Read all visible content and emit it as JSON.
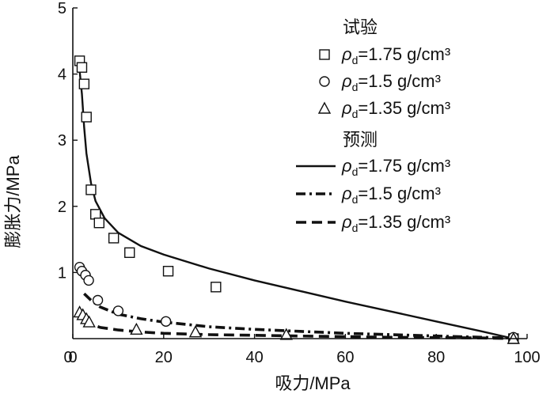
{
  "chart_data": {
    "type": "scatter",
    "xlabel": "吸力/MPa",
    "ylabel": "膨胀力/MPa",
    "xlim": [
      0,
      100
    ],
    "ylim": [
      0,
      5
    ],
    "xticks": [
      "0",
      "20",
      "40",
      "60",
      "80",
      "100"
    ],
    "yticks": [
      "1",
      "2",
      "3",
      "4",
      "5"
    ],
    "grid": false,
    "legend_position": "top-right",
    "legend_title_test": "试验",
    "legend_title_pred": "预测",
    "rho_symbol": "ρ",
    "rho_subscript": "d",
    "series": [
      {
        "name": "=1.75 g/cm³",
        "kind": "test",
        "marker": "square",
        "points": [
          [
            1.5,
            4.2
          ],
          [
            2.0,
            4.1
          ],
          [
            2.5,
            3.85
          ],
          [
            3.0,
            3.35
          ],
          [
            4.0,
            2.25
          ],
          [
            5.0,
            1.88
          ],
          [
            5.8,
            1.75
          ],
          [
            9.0,
            1.52
          ],
          [
            12.5,
            1.3
          ],
          [
            21.0,
            1.02
          ],
          [
            31.5,
            0.78
          ],
          [
            97.0,
            0.0
          ]
        ]
      },
      {
        "name": "=1.5 g/cm³",
        "kind": "test",
        "marker": "circle",
        "points": [
          [
            1.5,
            1.08
          ],
          [
            2.0,
            1.02
          ],
          [
            2.8,
            0.96
          ],
          [
            3.5,
            0.88
          ],
          [
            5.5,
            0.58
          ],
          [
            10.0,
            0.42
          ],
          [
            20.5,
            0.26
          ],
          [
            97.0,
            0.02
          ]
        ]
      },
      {
        "name": "=1.35 g/cm³",
        "kind": "test",
        "marker": "triangle",
        "points": [
          [
            1.5,
            0.4
          ],
          [
            2.2,
            0.36
          ],
          [
            3.0,
            0.3
          ],
          [
            3.6,
            0.25
          ],
          [
            14.0,
            0.14
          ],
          [
            27.0,
            0.1
          ],
          [
            47.0,
            0.06
          ],
          [
            97.0,
            0.0
          ]
        ]
      },
      {
        "name": "=1.75 g/cm³",
        "kind": "prediction",
        "line": "solid",
        "points": [
          [
            1.5,
            4.05
          ],
          [
            2.0,
            3.7
          ],
          [
            2.5,
            3.2
          ],
          [
            3.0,
            2.8
          ],
          [
            4.0,
            2.35
          ],
          [
            5.0,
            2.08
          ],
          [
            7.0,
            1.82
          ],
          [
            10.0,
            1.6
          ],
          [
            15.0,
            1.4
          ],
          [
            20.0,
            1.27
          ],
          [
            30.0,
            1.06
          ],
          [
            40.0,
            0.88
          ],
          [
            50.0,
            0.72
          ],
          [
            60.0,
            0.56
          ],
          [
            70.0,
            0.41
          ],
          [
            80.0,
            0.26
          ],
          [
            90.0,
            0.11
          ],
          [
            97.0,
            0.0
          ]
        ]
      },
      {
        "name": "=1.5 g/cm³",
        "kind": "prediction",
        "line": "dash-dot",
        "points": [
          [
            2.5,
            0.68
          ],
          [
            4.0,
            0.58
          ],
          [
            6.0,
            0.48
          ],
          [
            10.0,
            0.37
          ],
          [
            15.0,
            0.3
          ],
          [
            20.0,
            0.25
          ],
          [
            30.0,
            0.18
          ],
          [
            40.0,
            0.14
          ],
          [
            50.0,
            0.11
          ],
          [
            60.0,
            0.08
          ],
          [
            70.0,
            0.06
          ],
          [
            80.0,
            0.04
          ],
          [
            90.0,
            0.02
          ],
          [
            97.0,
            0.01
          ]
        ]
      },
      {
        "name": "=1.35 g/cm³",
        "kind": "prediction",
        "line": "dashed",
        "points": [
          [
            2.5,
            0.3
          ],
          [
            4.0,
            0.22
          ],
          [
            6.0,
            0.17
          ],
          [
            10.0,
            0.13
          ],
          [
            15.0,
            0.1
          ],
          [
            20.0,
            0.08
          ],
          [
            30.0,
            0.06
          ],
          [
            40.0,
            0.05
          ],
          [
            50.0,
            0.04
          ],
          [
            60.0,
            0.03
          ],
          [
            70.0,
            0.02
          ],
          [
            80.0,
            0.015
          ],
          [
            90.0,
            0.01
          ],
          [
            97.0,
            0.0
          ]
        ]
      }
    ]
  }
}
